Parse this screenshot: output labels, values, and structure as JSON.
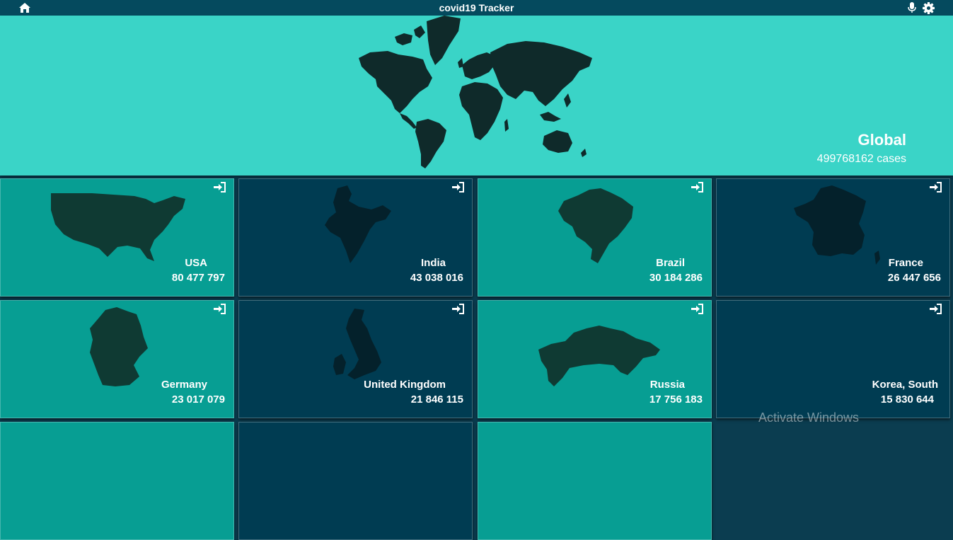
{
  "app": {
    "title": "covid19 Tracker"
  },
  "global": {
    "label": "Global",
    "cases": "499768162 cases"
  },
  "countries": [
    {
      "name": "USA",
      "count": "80 477 797"
    },
    {
      "name": "India",
      "count": "43 038 016"
    },
    {
      "name": "Brazil",
      "count": "30 184 286"
    },
    {
      "name": "France",
      "count": "26 447 656"
    },
    {
      "name": "Germany",
      "count": "23 017 079"
    },
    {
      "name": "United Kingdom",
      "count": "21 846 115"
    },
    {
      "name": "Russia",
      "count": "17 756 183"
    },
    {
      "name": "Korea, South",
      "count": "15 830 644"
    }
  ],
  "watermark": "Activate Windows",
  "icons": {
    "home": "home-icon",
    "mic": "microphone-icon",
    "settings": "gear-icon",
    "enter": "sign-in-icon"
  },
  "colors": {
    "topbar": "#054a5e",
    "hero": "#3ad4c7",
    "teal_card": "#079e93",
    "navy_card": "#003c52",
    "map_fill": "#0f2a2a"
  }
}
